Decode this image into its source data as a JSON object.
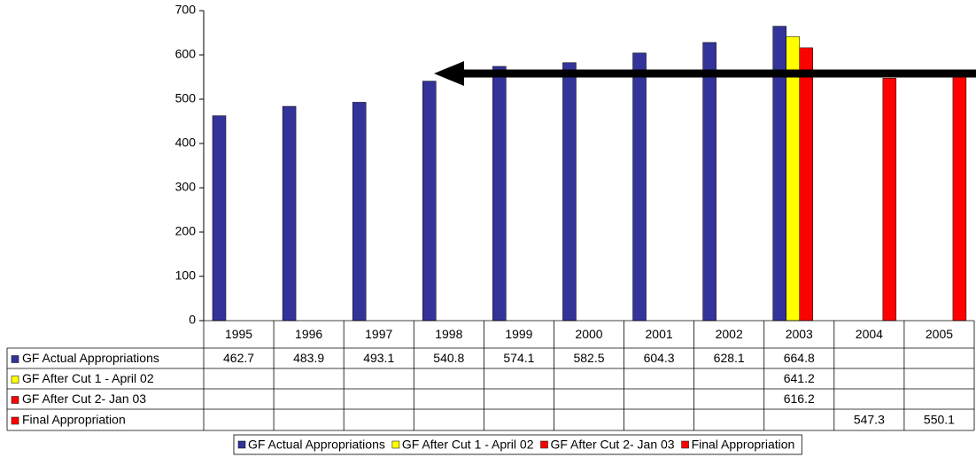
{
  "chart_data": {
    "type": "bar",
    "categories": [
      "1995",
      "1996",
      "1997",
      "1998",
      "1999",
      "2000",
      "2001",
      "2002",
      "2003",
      "2004",
      "2005"
    ],
    "series": [
      {
        "name": "GF Actual Appropriations",
        "color": "#333399",
        "values": [
          462.7,
          483.9,
          493.1,
          540.8,
          574.1,
          582.5,
          604.3,
          628.1,
          664.8,
          null,
          null
        ]
      },
      {
        "name": "GF After Cut 1 - April 02",
        "color": "#ffff00",
        "values": [
          null,
          null,
          null,
          null,
          null,
          null,
          null,
          null,
          641.2,
          null,
          null
        ]
      },
      {
        "name": "GF After Cut 2- Jan 03",
        "color": "#ff0000",
        "values": [
          null,
          null,
          null,
          null,
          null,
          null,
          null,
          null,
          616.2,
          null,
          null
        ]
      },
      {
        "name": "Final Appropriation",
        "color": "#ff0000",
        "values": [
          null,
          null,
          null,
          null,
          null,
          null,
          null,
          null,
          null,
          547.3,
          550.1
        ]
      }
    ],
    "ylim": [
      0,
      700
    ],
    "yticks": [
      0,
      100,
      200,
      300,
      400,
      500,
      600,
      700
    ],
    "grid": false,
    "legend": "bottom"
  }
}
